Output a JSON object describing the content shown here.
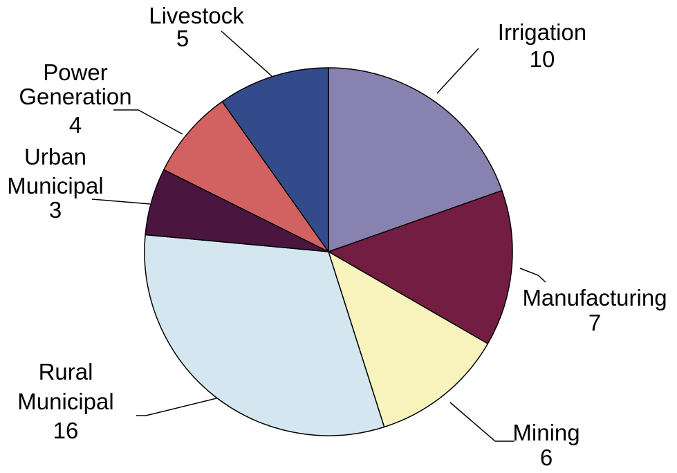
{
  "chart_data": {
    "type": "pie",
    "title": "",
    "start_angle_deg": 0,
    "direction": "clockwise",
    "slices": [
      {
        "label": "Irrigation",
        "value": 10,
        "color": "#8882b0"
      },
      {
        "label": "Manufacturing",
        "value": 7,
        "color": "#731d43"
      },
      {
        "label": "Mining",
        "value": 6,
        "color": "#f8f3bc"
      },
      {
        "label": "Rural Municipal",
        "value": 16,
        "color": "#d4e7f1"
      },
      {
        "label": "Urban Municipal",
        "value": 3,
        "color": "#4a1640"
      },
      {
        "label": "Power Generation",
        "value": 4,
        "color": "#d26161"
      },
      {
        "label": "Livestock",
        "value": 5,
        "color": "#344b8b"
      }
    ]
  }
}
